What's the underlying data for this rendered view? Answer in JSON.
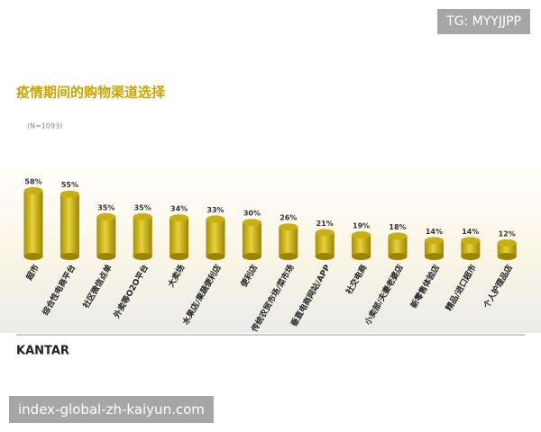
{
  "watermark": "TG: MYYJJPP",
  "footer": {
    "brand": "KANTAR",
    "site": "index-global-zh-kaiyun.com"
  },
  "chart_data": {
    "type": "bar",
    "title": "疫情期间的购物渠道选择",
    "subtitle": "(N=1093)",
    "categories": [
      "超市",
      "综合性电商平台",
      "社区微信点单",
      "外卖等O2O平台",
      "大卖场",
      "水果店/果蔬便利店",
      "便利店",
      "传统农贸市场/菜市场",
      "垂直电商网站/APP",
      "社交电商",
      "小卖部/夫妻老婆店",
      "新零售体验店",
      "精品/进口超市",
      "个人护理品店"
    ],
    "values": [
      58,
      55,
      35,
      35,
      34,
      33,
      30,
      26,
      21,
      19,
      18,
      14,
      14,
      12
    ],
    "value_labels": [
      "58%",
      "55%",
      "35%",
      "35%",
      "34%",
      "33%",
      "30%",
      "26%",
      "21%",
      "19%",
      "18%",
      "14%",
      "14%",
      "12%"
    ],
    "color": "#c9b012"
  }
}
